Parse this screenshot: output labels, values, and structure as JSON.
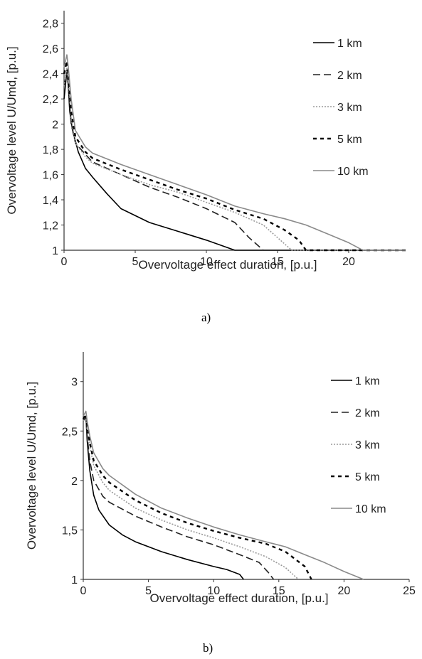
{
  "chart_data": [
    {
      "id": "a",
      "type": "line",
      "caption": "a)",
      "xlabel": "Overvoltage effect duration, [p.u.]",
      "ylabel": "Overvoltage level U/Umd, [p.u.]",
      "xlim": [
        0,
        24
      ],
      "ylim": [
        1,
        2.9
      ],
      "xticks": [
        0,
        5,
        10,
        15,
        20
      ],
      "xtick_labels": [
        "0",
        "5",
        "10",
        "15",
        "20"
      ],
      "yticks": [
        1,
        1.2,
        1.4,
        1.6,
        1.8,
        2,
        2.2,
        2.4,
        2.6,
        2.8
      ],
      "ytick_labels": [
        "1",
        "1,2",
        "1,4",
        "1,6",
        "1,8",
        "2",
        "2,2",
        "2,4",
        "2,6",
        "2,8"
      ],
      "grid": false,
      "legend_position": "right",
      "series": [
        {
          "name": "1 km",
          "color": "#000000",
          "style": "solid",
          "x": [
            0,
            0.2,
            0.3,
            0.4,
            0.6,
            1,
            1.5,
            2,
            3,
            4,
            6,
            8,
            10,
            11,
            12,
            24
          ],
          "y": [
            2.2,
            2.42,
            2.3,
            2.1,
            1.95,
            1.78,
            1.65,
            1.58,
            1.45,
            1.33,
            1.22,
            1.15,
            1.08,
            1.04,
            1,
            1
          ]
        },
        {
          "name": "2 km",
          "color": "#222222",
          "style": "dash",
          "x": [
            0,
            0.2,
            0.3,
            0.5,
            0.8,
            1.5,
            2,
            4,
            6,
            8,
            10,
            12,
            13,
            14,
            24
          ],
          "y": [
            2.3,
            2.43,
            2.3,
            2.0,
            1.85,
            1.76,
            1.7,
            1.6,
            1.5,
            1.42,
            1.33,
            1.22,
            1.1,
            1,
            1
          ]
        },
        {
          "name": "3 km",
          "color": "#9a9a9a",
          "style": "dot",
          "x": [
            0,
            0.2,
            0.3,
            0.5,
            0.8,
            1.5,
            2,
            4,
            6,
            8,
            10,
            12,
            14,
            15,
            16,
            24
          ],
          "y": [
            2.3,
            2.45,
            2.35,
            2.05,
            1.85,
            1.74,
            1.69,
            1.6,
            1.52,
            1.46,
            1.38,
            1.3,
            1.2,
            1.1,
            1,
            1
          ]
        },
        {
          "name": "5 km",
          "color": "#000000",
          "style": "bigdash",
          "x": [
            0,
            0.2,
            0.3,
            0.5,
            0.8,
            1.5,
            2,
            4,
            6,
            8,
            10,
            12,
            14,
            15.5,
            16.5,
            17,
            24
          ],
          "y": [
            2.4,
            2.5,
            2.4,
            2.1,
            1.9,
            1.78,
            1.73,
            1.64,
            1.56,
            1.48,
            1.41,
            1.32,
            1.25,
            1.16,
            1.08,
            1,
            1
          ]
        },
        {
          "name": "10 km",
          "color": "#8a8a8a",
          "style": "solid",
          "x": [
            0,
            0.2,
            0.3,
            0.5,
            0.8,
            1.5,
            2,
            4,
            6,
            8,
            10,
            12,
            14,
            15.5,
            17,
            18.5,
            20,
            21,
            24
          ],
          "y": [
            2.45,
            2.55,
            2.45,
            2.2,
            1.95,
            1.82,
            1.77,
            1.68,
            1.6,
            1.52,
            1.44,
            1.35,
            1.29,
            1.25,
            1.2,
            1.13,
            1.06,
            1,
            1
          ]
        }
      ]
    },
    {
      "id": "b",
      "type": "line",
      "caption": "b)",
      "xlabel": "Overvoltage effect duration, [p.u.]",
      "ylabel": "Overvoltage level U/Umd, [p.u.]",
      "xlim": [
        0,
        25
      ],
      "ylim": [
        1,
        3.3
      ],
      "xticks": [
        0,
        5,
        10,
        15,
        20,
        25
      ],
      "xtick_labels": [
        "0",
        "5",
        "10",
        "15",
        "20",
        "25"
      ],
      "yticks": [
        1,
        1.5,
        2,
        2.5,
        3
      ],
      "ytick_labels": [
        "1",
        "1,5",
        "2",
        "2,5",
        "3"
      ],
      "grid": false,
      "legend_position": "right",
      "series": [
        {
          "name": "1 km",
          "color": "#000000",
          "style": "solid",
          "x": [
            0,
            0.2,
            0.3,
            0.5,
            0.8,
            1.2,
            2,
            3,
            4,
            6,
            8,
            10,
            11,
            12,
            12.3
          ],
          "y": [
            2.6,
            2.65,
            2.4,
            2.1,
            1.85,
            1.7,
            1.55,
            1.45,
            1.38,
            1.28,
            1.2,
            1.13,
            1.1,
            1.05,
            1
          ]
        },
        {
          "name": "2 km",
          "color": "#222222",
          "style": "dash",
          "x": [
            0,
            0.2,
            0.3,
            0.5,
            0.8,
            1.5,
            2,
            4,
            6,
            8,
            10,
            12,
            13.5,
            14.2,
            14.6
          ],
          "y": [
            2.6,
            2.65,
            2.45,
            2.2,
            2.0,
            1.84,
            1.78,
            1.64,
            1.53,
            1.43,
            1.35,
            1.25,
            1.17,
            1.07,
            1
          ]
        },
        {
          "name": "3 km",
          "color": "#9a9a9a",
          "style": "dot",
          "x": [
            0,
            0.2,
            0.3,
            0.5,
            0.8,
            1.5,
            2,
            4,
            6,
            8,
            10,
            12,
            14,
            15.5,
            16.5
          ],
          "y": [
            2.6,
            2.65,
            2.5,
            2.35,
            2.15,
            1.98,
            1.9,
            1.72,
            1.6,
            1.5,
            1.42,
            1.33,
            1.23,
            1.12,
            1
          ]
        },
        {
          "name": "5 km",
          "color": "#000000",
          "style": "bigdash",
          "x": [
            0,
            0.2,
            0.3,
            0.5,
            0.8,
            1.5,
            2,
            4,
            6,
            8,
            10,
            12,
            14,
            15.5,
            17,
            17.5
          ],
          "y": [
            2.62,
            2.67,
            2.55,
            2.38,
            2.2,
            2.05,
            1.98,
            1.8,
            1.67,
            1.57,
            1.49,
            1.42,
            1.36,
            1.28,
            1.13,
            1
          ]
        },
        {
          "name": "10 km",
          "color": "#8a8a8a",
          "style": "solid",
          "x": [
            0,
            0.2,
            0.3,
            0.5,
            0.8,
            1.5,
            2,
            4,
            6,
            8,
            10,
            12,
            14,
            15.5,
            17,
            18.5,
            20,
            21.5
          ],
          "y": [
            2.65,
            2.7,
            2.6,
            2.45,
            2.28,
            2.12,
            2.05,
            1.86,
            1.72,
            1.62,
            1.53,
            1.45,
            1.38,
            1.33,
            1.25,
            1.17,
            1.08,
            1
          ]
        }
      ]
    }
  ]
}
